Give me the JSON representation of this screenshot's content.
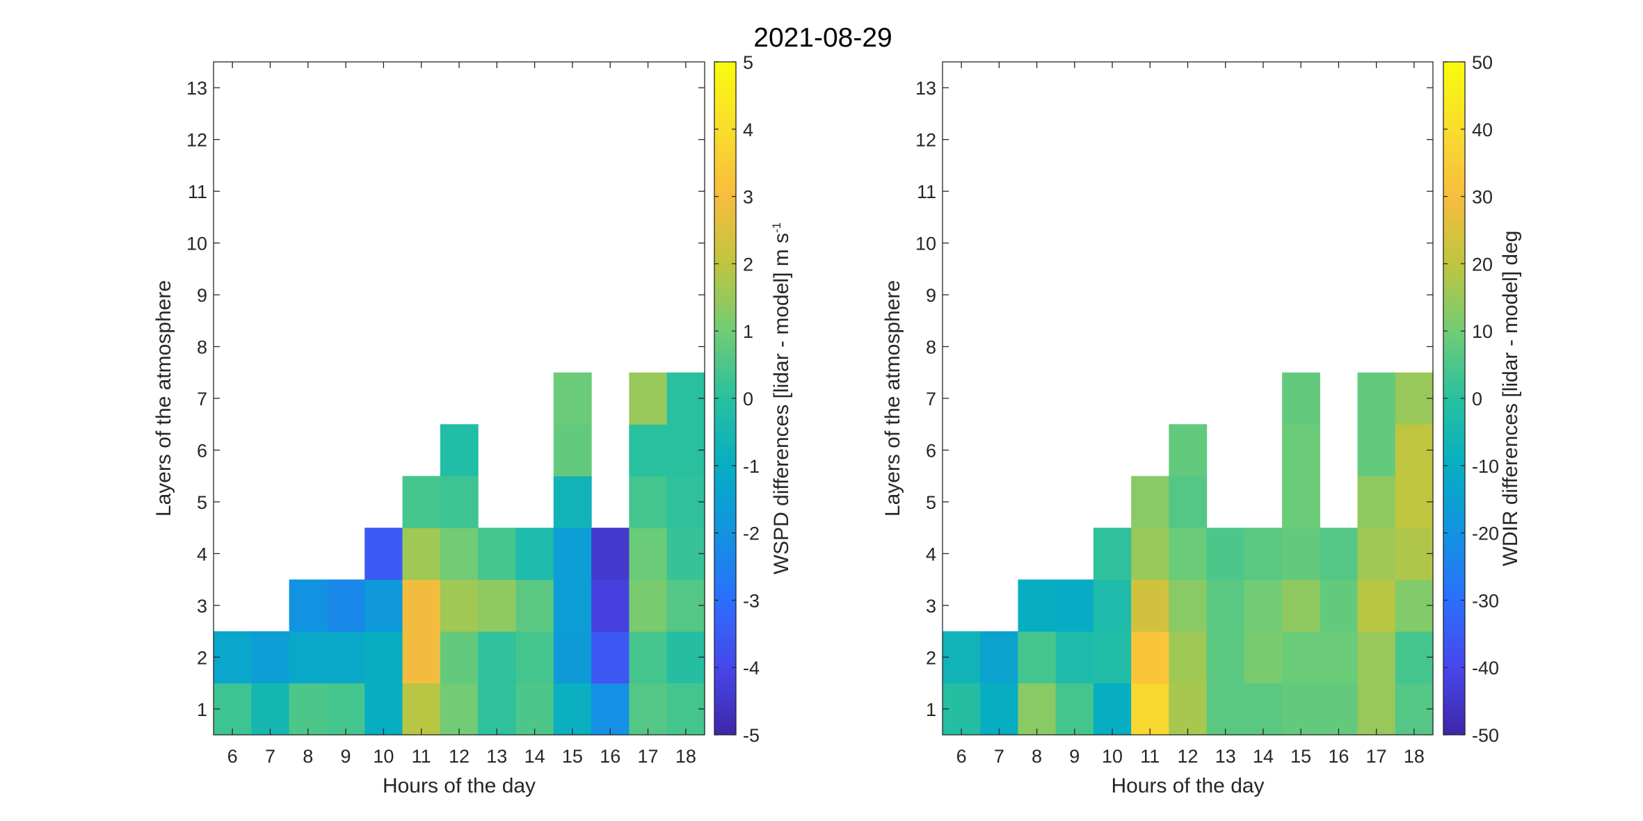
{
  "title": "2021-08-29",
  "chart_data": [
    {
      "type": "heatmap",
      "name": "wspd",
      "xlabel": "Hours of the day",
      "ylabel": "Layers of the atmosphere",
      "colorbar_label": "WSPD differences [lidar - model] m s",
      "colorbar_label_superscript": "-1",
      "x": [
        6,
        7,
        8,
        9,
        10,
        11,
        12,
        13,
        14,
        15,
        16,
        17,
        18
      ],
      "y": [
        1,
        2,
        3,
        4,
        5,
        6,
        7,
        8,
        9,
        10,
        11,
        12,
        13
      ],
      "xlim": [
        5.5,
        18.5
      ],
      "ylim": [
        0.5,
        13.5
      ],
      "clim": [
        -5,
        5
      ],
      "colorbar_ticks": [
        -5,
        -4,
        -3,
        -2,
        -1,
        0,
        1,
        2,
        3,
        4,
        5
      ],
      "values": [
        [
          0.3,
          -0.5,
          0.5,
          0.4,
          -1.0,
          1.9,
          1.0,
          0.1,
          0.5,
          -0.9,
          -2.1,
          0.6,
          0.4
        ],
        [
          -1.3,
          -1.6,
          -1.2,
          -1.2,
          -1.0,
          2.9,
          0.8,
          0.1,
          0.4,
          -1.7,
          -3.6,
          0.4,
          -0.1
        ],
        [
          null,
          null,
          -2.0,
          -2.3,
          -1.8,
          2.9,
          1.6,
          1.4,
          0.7,
          -1.6,
          -4.2,
          1.1,
          0.6
        ],
        [
          null,
          null,
          null,
          null,
          -3.5,
          1.6,
          1.0,
          0.4,
          -0.3,
          -1.6,
          -4.4,
          0.9,
          0.2
        ],
        [
          null,
          null,
          null,
          null,
          null,
          0.4,
          0.3,
          null,
          null,
          -0.7,
          null,
          0.4,
          0.1
        ],
        [
          null,
          null,
          null,
          null,
          null,
          null,
          -0.2,
          null,
          null,
          0.8,
          null,
          0.0,
          0.0
        ],
        [
          null,
          null,
          null,
          null,
          null,
          null,
          null,
          null,
          null,
          0.9,
          null,
          1.5,
          0.0
        ],
        [
          null,
          null,
          null,
          null,
          null,
          null,
          null,
          null,
          null,
          null,
          null,
          null,
          null
        ],
        [
          null,
          null,
          null,
          null,
          null,
          null,
          null,
          null,
          null,
          null,
          null,
          null,
          null
        ],
        [
          null,
          null,
          null,
          null,
          null,
          null,
          null,
          null,
          null,
          null,
          null,
          null,
          null
        ],
        [
          null,
          null,
          null,
          null,
          null,
          null,
          null,
          null,
          null,
          null,
          null,
          null,
          null
        ],
        [
          null,
          null,
          null,
          null,
          null,
          null,
          null,
          null,
          null,
          null,
          null,
          null,
          null
        ],
        [
          null,
          null,
          null,
          null,
          null,
          null,
          null,
          null,
          null,
          null,
          null,
          null,
          null
        ]
      ]
    },
    {
      "type": "heatmap",
      "name": "wdir",
      "xlabel": "Hours of the day",
      "ylabel": "Layers of the atmosphere",
      "colorbar_label": "WDIR differences [lidar - model] deg",
      "colorbar_label_superscript": "",
      "x": [
        6,
        7,
        8,
        9,
        10,
        11,
        12,
        13,
        14,
        15,
        16,
        17,
        18
      ],
      "y": [
        1,
        2,
        3,
        4,
        5,
        6,
        7,
        8,
        9,
        10,
        11,
        12,
        13
      ],
      "xlim": [
        5.5,
        18.5
      ],
      "ylim": [
        0.5,
        13.5
      ],
      "clim": [
        -50,
        50
      ],
      "colorbar_ticks": [
        -50,
        -40,
        -30,
        -20,
        -10,
        0,
        10,
        20,
        30,
        40,
        50
      ],
      "values": [
        [
          -1,
          -10,
          13,
          4,
          -10,
          38,
          17,
          7,
          7,
          8,
          8,
          15,
          6
        ],
        [
          -7,
          -14,
          4,
          -3,
          -2,
          33,
          16,
          7,
          11,
          9,
          9,
          15,
          4
        ],
        [
          null,
          null,
          -10,
          -11,
          -3,
          23,
          13,
          7,
          10,
          14,
          8,
          19,
          12
        ],
        [
          null,
          null,
          null,
          null,
          1,
          15,
          9,
          5,
          7,
          8,
          6,
          16,
          18
        ],
        [
          null,
          null,
          null,
          null,
          null,
          13,
          6,
          null,
          null,
          9,
          null,
          14,
          20
        ],
        [
          null,
          null,
          null,
          null,
          null,
          null,
          8,
          null,
          null,
          9,
          null,
          8,
          20
        ],
        [
          null,
          null,
          null,
          null,
          null,
          null,
          null,
          null,
          null,
          8,
          null,
          8,
          15
        ],
        [
          null,
          null,
          null,
          null,
          null,
          null,
          null,
          null,
          null,
          null,
          null,
          null,
          null
        ],
        [
          null,
          null,
          null,
          null,
          null,
          null,
          null,
          null,
          null,
          null,
          null,
          null,
          null
        ],
        [
          null,
          null,
          null,
          null,
          null,
          null,
          null,
          null,
          null,
          null,
          null,
          null,
          null
        ],
        [
          null,
          null,
          null,
          null,
          null,
          null,
          null,
          null,
          null,
          null,
          null,
          null,
          null
        ],
        [
          null,
          null,
          null,
          null,
          null,
          null,
          null,
          null,
          null,
          null,
          null,
          null,
          null
        ],
        [
          null,
          null,
          null,
          null,
          null,
          null,
          null,
          null,
          null,
          null,
          null,
          null,
          null
        ]
      ]
    }
  ]
}
